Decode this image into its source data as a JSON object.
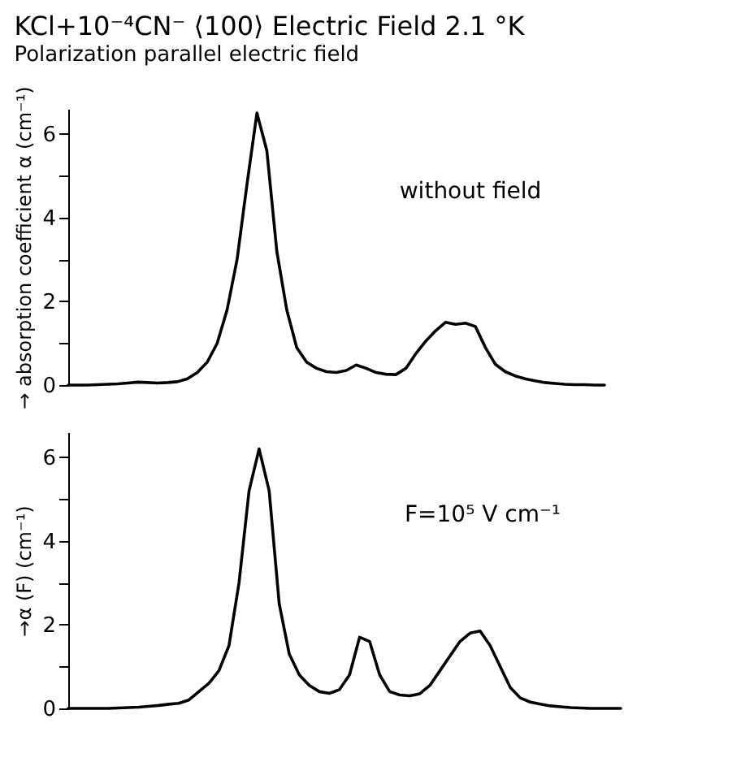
{
  "chart_data": [
    {
      "type": "line",
      "title": "KCl+10⁻⁴CN⁻ ⟨100⟩ Electric Field 2.1 °K",
      "subtitle": "Polarization parallel electric field",
      "ylabel": "→ absorption coefficient α (cm⁻¹)",
      "annotations": [
        "without field"
      ],
      "categories": [
        null,
        null,
        null,
        null,
        null,
        null,
        null,
        null,
        null,
        null,
        null,
        null,
        null,
        null,
        null,
        null,
        null,
        null,
        null,
        null,
        null,
        null,
        null,
        null,
        null,
        null,
        null,
        null,
        null,
        null,
        null,
        null,
        null,
        null,
        null,
        null,
        null,
        null,
        null,
        null,
        null,
        null,
        null,
        null,
        null,
        null,
        null,
        null,
        null,
        null,
        null,
        null,
        null,
        null,
        null
      ],
      "series": [
        {
          "color": "#000000",
          "values": [
            0,
            0,
            0,
            0.01,
            0.02,
            0.03,
            0.05,
            0.07,
            0.06,
            0.05,
            0.06,
            0.08,
            0.15,
            0.3,
            0.55,
            1.0,
            1.8,
            3.0,
            4.8,
            6.5,
            5.6,
            3.2,
            1.8,
            0.9,
            0.55,
            0.4,
            0.32,
            0.3,
            0.35,
            0.48,
            0.4,
            0.3,
            0.26,
            0.25,
            0.4,
            0.75,
            1.05,
            1.3,
            1.5,
            1.45,
            1.48,
            1.4,
            0.9,
            0.5,
            0.32,
            0.22,
            0.15,
            0.1,
            0.06,
            0.04,
            0.02,
            0.01,
            0.01,
            0,
            0
          ]
        }
      ],
      "ylim": [
        0,
        6.6
      ],
      "yticks": [
        0,
        {
          "value": 1,
          "label": null
        },
        2,
        {
          "value": 3,
          "label": null
        },
        4,
        {
          "value": 5,
          "label": null
        },
        6
      ],
      "tick_labels": "y",
      "grid": false,
      "marker": "none",
      "line_style": "solid"
    },
    {
      "type": "line",
      "ylabel": "→α (F) (cm⁻¹)",
      "annotations": [
        "F=10⁵ V cm⁻¹"
      ],
      "categories": [
        null,
        null,
        null,
        null,
        null,
        null,
        null,
        null,
        null,
        null,
        null,
        null,
        null,
        null,
        null,
        null,
        null,
        null,
        null,
        null,
        null,
        null,
        null,
        null,
        null,
        null,
        null,
        null,
        null,
        null,
        null,
        null,
        null,
        null,
        null,
        null,
        null,
        null,
        null,
        null,
        null,
        null,
        null,
        null,
        null,
        null,
        null,
        null,
        null,
        null,
        null,
        null,
        null,
        null,
        null,
        null
      ],
      "series": [
        {
          "color": "#000000",
          "values": [
            0,
            0,
            0,
            0,
            0,
            0.01,
            0.02,
            0.03,
            0.05,
            0.07,
            0.1,
            0.12,
            0.2,
            0.4,
            0.6,
            0.9,
            1.5,
            3.0,
            5.2,
            6.2,
            5.2,
            2.5,
            1.3,
            0.8,
            0.55,
            0.4,
            0.36,
            0.45,
            0.8,
            1.7,
            1.6,
            0.8,
            0.4,
            0.32,
            0.3,
            0.35,
            0.55,
            0.9,
            1.25,
            1.6,
            1.8,
            1.85,
            1.5,
            1.0,
            0.5,
            0.25,
            0.15,
            0.1,
            0.06,
            0.04,
            0.02,
            0.01,
            0,
            0,
            0,
            0
          ]
        }
      ],
      "ylim": [
        0,
        6.6
      ],
      "yticks": [
        0,
        {
          "value": 1,
          "label": null
        },
        2,
        {
          "value": 3,
          "label": null
        },
        4,
        {
          "value": 5,
          "label": null
        },
        6
      ],
      "tick_labels": "y",
      "grid": false,
      "marker": "none",
      "line_style": "solid"
    }
  ]
}
